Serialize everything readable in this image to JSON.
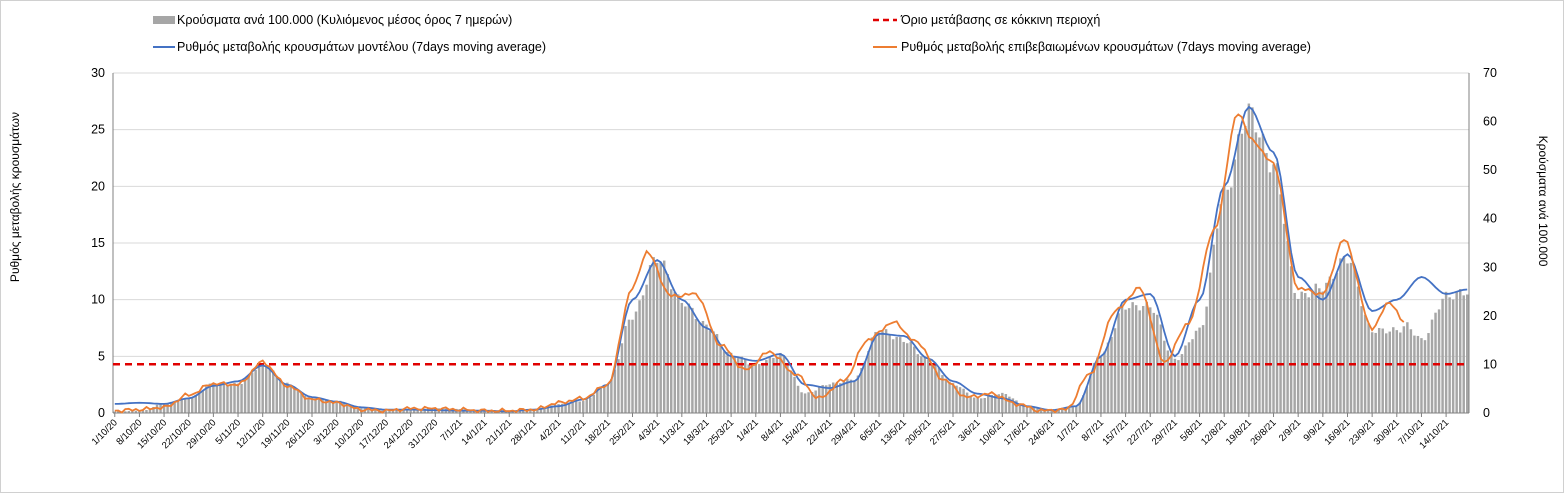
{
  "chart_data": {
    "type": "bar",
    "legend": {
      "bars": "Κρούσματα ανά 100.000 (Κυλιόμενος μέσος όρος 7 ημερών)",
      "threshold": "Όριο μετάβασης σε κόκκινη περιοχή",
      "model": "Ρυθμός μεταβολής κρουσμάτων μοντέλου (7days moving average)",
      "confirmed": "Ρυθμός μεταβολής επιβεβαιωμένων κρουσμάτων (7days moving average)"
    },
    "y_left_label": "Ρυθμός μεταβολής κρουσμάτων",
    "y_right_label": "Κρούσματα ανά 100.000",
    "y_left": {
      "min": 0,
      "max": 30,
      "ticks": [
        0,
        5,
        10,
        15,
        20,
        25,
        30
      ]
    },
    "y_right": {
      "min": 0,
      "max": 70,
      "ticks": [
        0,
        10,
        20,
        30,
        40,
        50,
        60,
        70
      ]
    },
    "grid": true,
    "x_start_date": "2020-10-01",
    "x_tick_labels": [
      "1/10/20",
      "8/10/20",
      "15/10/20",
      "22/10/20",
      "29/10/20",
      "5/11/20",
      "12/11/20",
      "19/11/20",
      "26/11/20",
      "3/12/20",
      "10/12/20",
      "17/12/20",
      "24/12/20",
      "31/12/20",
      "7/1/21",
      "14/1/21",
      "21/1/21",
      "28/1/21",
      "4/2/21",
      "11/2/21",
      "18/2/21",
      "25/2/21",
      "4/3/21",
      "11/3/21",
      "18/3/21",
      "25/3/21",
      "1/4/21",
      "8/4/21",
      "15/4/21",
      "22/4/21",
      "29/4/21",
      "6/5/21",
      "13/5/21",
      "20/5/21",
      "27/5/21",
      "3/6/21",
      "10/6/21",
      "17/6/21",
      "24/6/21",
      "1/7/21",
      "8/7/21",
      "15/7/21",
      "22/7/21",
      "29/7/21",
      "5/8/21",
      "12/8/21",
      "19/8/21",
      "26/8/21",
      "2/9/21",
      "9/9/21",
      "16/9/21",
      "23/9/21",
      "30/9/21",
      "7/10/21",
      "14/10/21"
    ],
    "threshold_value": 4.3,
    "series": [
      {
        "name": "Κρούσματα ανά 100.000 (Κυλιόμενος μέσος όρος 7 ημερών)",
        "axis": "right",
        "color": "#a6a6a6",
        "keypoints": [
          [
            "2020-10-01",
            0.3
          ],
          [
            "2020-10-09",
            0.5
          ],
          [
            "2020-10-15",
            2
          ],
          [
            "2020-10-22",
            3
          ],
          [
            "2020-10-29",
            6
          ],
          [
            "2020-11-05",
            6
          ],
          [
            "2020-11-12",
            10
          ],
          [
            "2020-11-19",
            6
          ],
          [
            "2020-11-26",
            3
          ],
          [
            "2020-12-03",
            2.5
          ],
          [
            "2020-12-10",
            1
          ],
          [
            "2020-12-17",
            0.5
          ],
          [
            "2020-12-24",
            0.8
          ],
          [
            "2020-12-31",
            1
          ],
          [
            "2021-01-07",
            0.8
          ],
          [
            "2021-01-14",
            0.6
          ],
          [
            "2021-01-21",
            0.5
          ],
          [
            "2021-01-28",
            0.8
          ],
          [
            "2021-02-04",
            1.8
          ],
          [
            "2021-02-11",
            2.5
          ],
          [
            "2021-02-18",
            6
          ],
          [
            "2021-02-25",
            20
          ],
          [
            "2021-03-04",
            32
          ],
          [
            "2021-03-11",
            23
          ],
          [
            "2021-03-18",
            18
          ],
          [
            "2021-03-25",
            12
          ],
          [
            "2021-04-01",
            10
          ],
          [
            "2021-04-08",
            12
          ],
          [
            "2021-04-15",
            4
          ],
          [
            "2021-04-22",
            6
          ],
          [
            "2021-04-29",
            7
          ],
          [
            "2021-05-06",
            17
          ],
          [
            "2021-05-13",
            15
          ],
          [
            "2021-05-20",
            11
          ],
          [
            "2021-05-27",
            6
          ],
          [
            "2021-06-03",
            3
          ],
          [
            "2021-06-10",
            4
          ],
          [
            "2021-06-17",
            1.5
          ],
          [
            "2021-06-24",
            0.5
          ],
          [
            "2021-07-01",
            1.5
          ],
          [
            "2021-07-08",
            12
          ],
          [
            "2021-07-15",
            22
          ],
          [
            "2021-07-22",
            22
          ],
          [
            "2021-07-29",
            11
          ],
          [
            "2021-08-05",
            17
          ],
          [
            "2021-08-12",
            45
          ],
          [
            "2021-08-19",
            62
          ],
          [
            "2021-08-26",
            51
          ],
          [
            "2021-09-02",
            24
          ],
          [
            "2021-09-09",
            26
          ],
          [
            "2021-09-16",
            32
          ],
          [
            "2021-09-23",
            17
          ],
          [
            "2021-09-30",
            17
          ],
          [
            "2021-10-03",
            18
          ],
          [
            "2021-10-07",
            15
          ],
          [
            "2021-10-14",
            24
          ],
          [
            "2021-10-20",
            25
          ]
        ]
      },
      {
        "name": "Ρυθμός μεταβολής κρουσμάτων μοντέλου (7days moving average)",
        "axis": "left",
        "color": "#4472c4",
        "keypoints": [
          [
            "2020-10-01",
            0.8
          ],
          [
            "2020-10-08",
            0.9
          ],
          [
            "2020-10-15",
            0.8
          ],
          [
            "2020-10-22",
            1.3
          ],
          [
            "2020-10-29",
            2.4
          ],
          [
            "2020-11-05",
            2.8
          ],
          [
            "2020-11-12",
            4.2
          ],
          [
            "2020-11-19",
            2.5
          ],
          [
            "2020-11-26",
            1.4
          ],
          [
            "2020-12-03",
            1.0
          ],
          [
            "2020-12-10",
            0.5
          ],
          [
            "2020-12-17",
            0.3
          ],
          [
            "2020-12-24",
            0.3
          ],
          [
            "2020-12-31",
            0.25
          ],
          [
            "2021-01-07",
            0.2
          ],
          [
            "2021-01-14",
            0.2
          ],
          [
            "2021-01-21",
            0.15
          ],
          [
            "2021-01-28",
            0.3
          ],
          [
            "2021-02-04",
            0.6
          ],
          [
            "2021-02-11",
            1.2
          ],
          [
            "2021-02-18",
            2.5
          ],
          [
            "2021-02-25",
            10
          ],
          [
            "2021-03-04",
            13.5
          ],
          [
            "2021-03-11",
            10
          ],
          [
            "2021-03-18",
            7.5
          ],
          [
            "2021-03-25",
            5
          ],
          [
            "2021-04-01",
            4.6
          ],
          [
            "2021-04-08",
            5.2
          ],
          [
            "2021-04-15",
            2.5
          ],
          [
            "2021-04-22",
            2.2
          ],
          [
            "2021-04-29",
            2.8
          ],
          [
            "2021-05-06",
            7
          ],
          [
            "2021-05-13",
            6.8
          ],
          [
            "2021-05-20",
            4.8
          ],
          [
            "2021-05-27",
            2.8
          ],
          [
            "2021-06-03",
            1.7
          ],
          [
            "2021-06-10",
            1.3
          ],
          [
            "2021-06-17",
            0.6
          ],
          [
            "2021-06-24",
            0.25
          ],
          [
            "2021-07-01",
            0.6
          ],
          [
            "2021-07-08",
            5
          ],
          [
            "2021-07-15",
            10
          ],
          [
            "2021-07-22",
            10.5
          ],
          [
            "2021-07-29",
            5
          ],
          [
            "2021-08-05",
            10
          ],
          [
            "2021-08-12",
            20
          ],
          [
            "2021-08-19",
            27
          ],
          [
            "2021-08-26",
            23
          ],
          [
            "2021-09-02",
            12
          ],
          [
            "2021-09-09",
            10
          ],
          [
            "2021-09-16",
            14
          ],
          [
            "2021-09-23",
            9
          ],
          [
            "2021-09-30",
            10
          ],
          [
            "2021-10-07",
            12
          ],
          [
            "2021-10-14",
            10.5
          ],
          [
            "2021-10-20",
            10.9
          ]
        ]
      },
      {
        "name": "Ρυθμός μεταβολής επιβεβαιωμένων κρουσμάτων (7days moving average)",
        "axis": "left",
        "color": "#ed7d31",
        "keypoints": [
          [
            "2020-10-01",
            0.2
          ],
          [
            "2020-10-08",
            0.3
          ],
          [
            "2020-10-15",
            0.5
          ],
          [
            "2020-10-22",
            1.6
          ],
          [
            "2020-10-29",
            2.6
          ],
          [
            "2020-11-05",
            2.5
          ],
          [
            "2020-11-12",
            4.5
          ],
          [
            "2020-11-19",
            2.4
          ],
          [
            "2020-11-26",
            1.2
          ],
          [
            "2020-12-03",
            0.9
          ],
          [
            "2020-12-10",
            0.3
          ],
          [
            "2020-12-17",
            0.2
          ],
          [
            "2020-12-24",
            0.4
          ],
          [
            "2020-12-31",
            0.4
          ],
          [
            "2021-01-07",
            0.3
          ],
          [
            "2021-01-14",
            0.2
          ],
          [
            "2021-01-21",
            0.2
          ],
          [
            "2021-01-28",
            0.3
          ],
          [
            "2021-02-04",
            0.9
          ],
          [
            "2021-02-11",
            1.3
          ],
          [
            "2021-02-18",
            2.5
          ],
          [
            "2021-02-25",
            11
          ],
          [
            "2021-03-01",
            14.2
          ],
          [
            "2021-03-08",
            10.3
          ],
          [
            "2021-03-15",
            10.5
          ],
          [
            "2021-03-22",
            6
          ],
          [
            "2021-03-29",
            3.8
          ],
          [
            "2021-04-05",
            5.4
          ],
          [
            "2021-04-12",
            3.5
          ],
          [
            "2021-04-19",
            1.3
          ],
          [
            "2021-04-26",
            2.9
          ],
          [
            "2021-05-03",
            6.5
          ],
          [
            "2021-05-10",
            8
          ],
          [
            "2021-05-17",
            6.2
          ],
          [
            "2021-05-24",
            3
          ],
          [
            "2021-05-31",
            1.4
          ],
          [
            "2021-06-07",
            1.7
          ],
          [
            "2021-06-14",
            0.8
          ],
          [
            "2021-06-21",
            0.2
          ],
          [
            "2021-06-28",
            0.3
          ],
          [
            "2021-07-05",
            3.5
          ],
          [
            "2021-07-12",
            9
          ],
          [
            "2021-07-19",
            11
          ],
          [
            "2021-07-26",
            4.5
          ],
          [
            "2021-08-02",
            8
          ],
          [
            "2021-08-09",
            16
          ],
          [
            "2021-08-16",
            26.5
          ],
          [
            "2021-08-20",
            24
          ],
          [
            "2021-08-26",
            22
          ],
          [
            "2021-09-02",
            11
          ],
          [
            "2021-09-09",
            10.5
          ],
          [
            "2021-09-15",
            15.3
          ],
          [
            "2021-09-23",
            7.5
          ],
          [
            "2021-09-28",
            9.8
          ],
          [
            "2021-10-02",
            8
          ]
        ]
      }
    ]
  }
}
